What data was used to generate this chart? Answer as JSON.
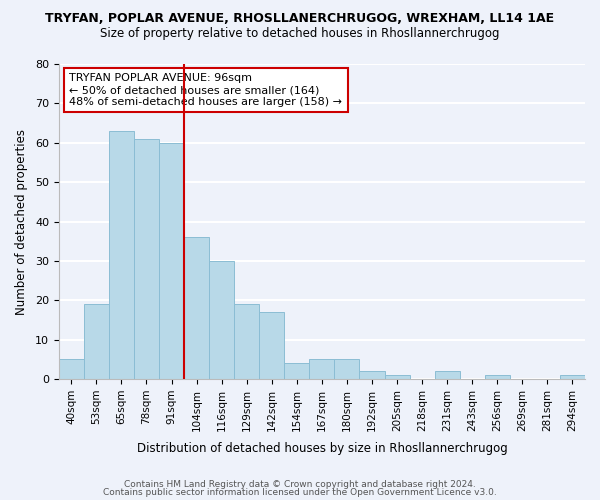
{
  "title1": "TRYFAN, POPLAR AVENUE, RHOSLLANERCHRUGOG, WREXHAM, LL14 1AE",
  "title2": "Size of property relative to detached houses in Rhosllannerchrugog",
  "xlabel": "Distribution of detached houses by size in Rhosllannerchrugog",
  "ylabel": "Number of detached properties",
  "categories": [
    "40sqm",
    "53sqm",
    "65sqm",
    "78sqm",
    "91sqm",
    "104sqm",
    "116sqm",
    "129sqm",
    "142sqm",
    "154sqm",
    "167sqm",
    "180sqm",
    "192sqm",
    "205sqm",
    "218sqm",
    "231sqm",
    "243sqm",
    "256sqm",
    "269sqm",
    "281sqm",
    "294sqm"
  ],
  "values": [
    5,
    19,
    63,
    61,
    60,
    36,
    30,
    19,
    17,
    4,
    5,
    5,
    2,
    1,
    0,
    2,
    0,
    1,
    0,
    0,
    1
  ],
  "bar_color": "#b8d9e8",
  "bar_edge_color": "#8bbdd4",
  "vline_color": "#cc0000",
  "vline_x": 4.5,
  "ylim": [
    0,
    80
  ],
  "yticks": [
    0,
    10,
    20,
    30,
    40,
    50,
    60,
    70,
    80
  ],
  "annotation_title": "TRYFAN POPLAR AVENUE: 96sqm",
  "annotation_line1": "← 50% of detached houses are smaller (164)",
  "annotation_line2": "48% of semi-detached houses are larger (158) →",
  "annotation_box_color": "#ffffff",
  "annotation_box_edge": "#cc0000",
  "bg_color": "#eef2fa",
  "grid_color": "#ffffff",
  "footer1": "Contains HM Land Registry data © Crown copyright and database right 2024.",
  "footer2": "Contains public sector information licensed under the Open Government Licence v3.0."
}
